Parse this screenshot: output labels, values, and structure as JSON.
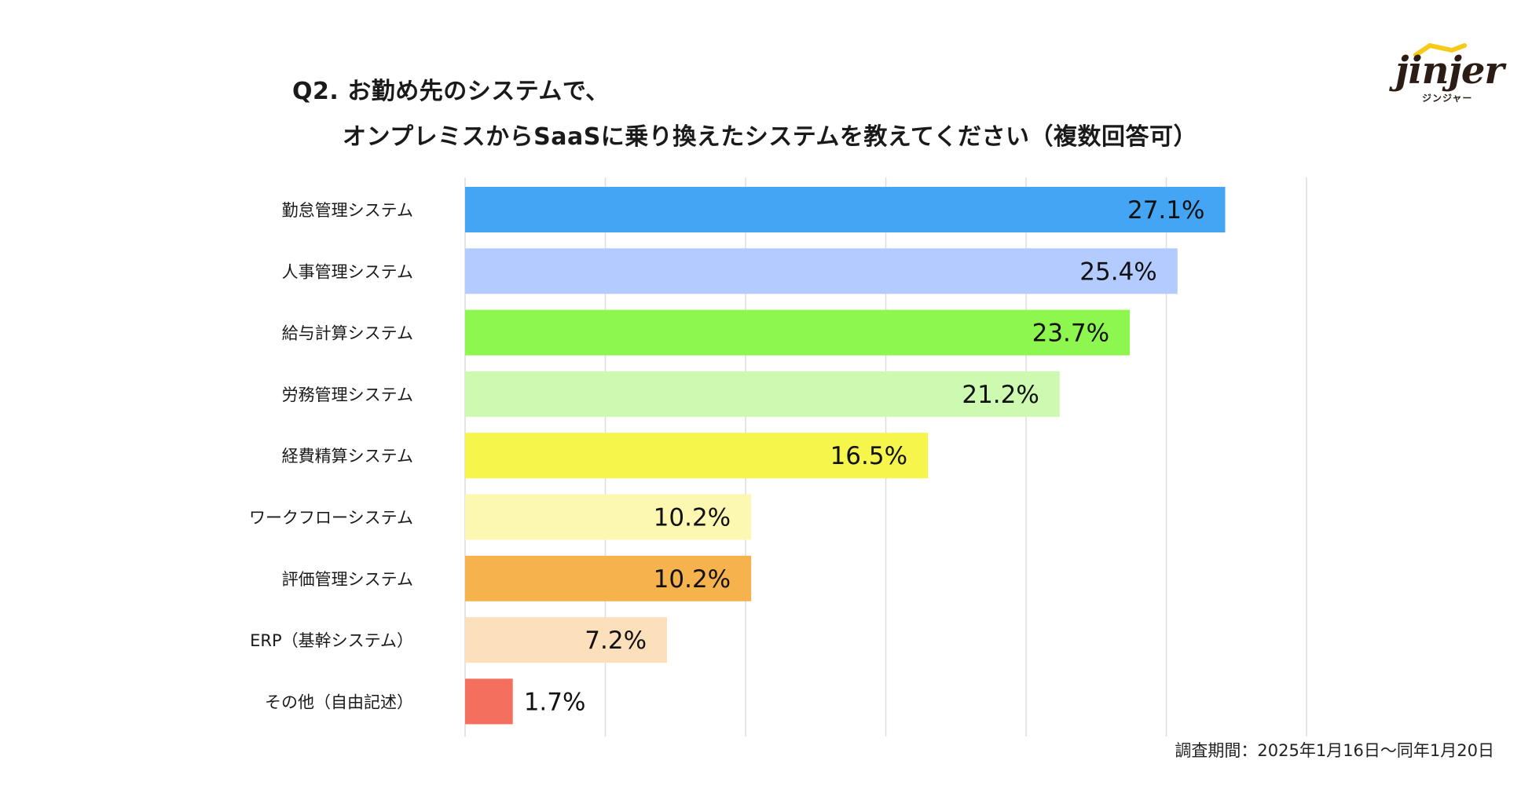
{
  "title": {
    "line1": "Q2. お勤め先のシステムで、",
    "line2": "オンプレミスからSaaSに乗り換えたシステムを教えてください（複数回答可）"
  },
  "logo": {
    "word": "jinjer",
    "sub": "ジンジャー"
  },
  "note": "調査期間：2025年1月16日〜同年1月20日",
  "chart_data": {
    "type": "bar",
    "orientation": "horizontal",
    "title": "オンプレミスからSaaSに乗り換えたシステム",
    "categories": [
      "勤怠管理システム",
      "人事管理システム",
      "給与計算システム",
      "労務管理システム",
      "経費精算システム",
      "ワークフローシステム",
      "評価管理システム",
      "ERP（基幹システム）",
      "その他（自由記述）"
    ],
    "values": [
      27.1,
      25.4,
      23.7,
      21.2,
      16.5,
      10.2,
      10.2,
      7.2,
      1.7
    ],
    "labels": [
      "27.1%",
      "25.4%",
      "23.7%",
      "21.2%",
      "16.5%",
      "10.2%",
      "10.2%",
      "7.2%",
      "1.7%"
    ],
    "colors": [
      "#44a5f5",
      "#b3cbff",
      "#8ef74f",
      "#cdfab0",
      "#f6f54c",
      "#fcf8b1",
      "#f5b24d",
      "#fce0bc",
      "#f46f5e"
    ],
    "xlim": [
      0,
      30
    ],
    "gridlines": [
      5,
      10,
      15,
      20,
      25,
      30
    ],
    "grid": true
  }
}
